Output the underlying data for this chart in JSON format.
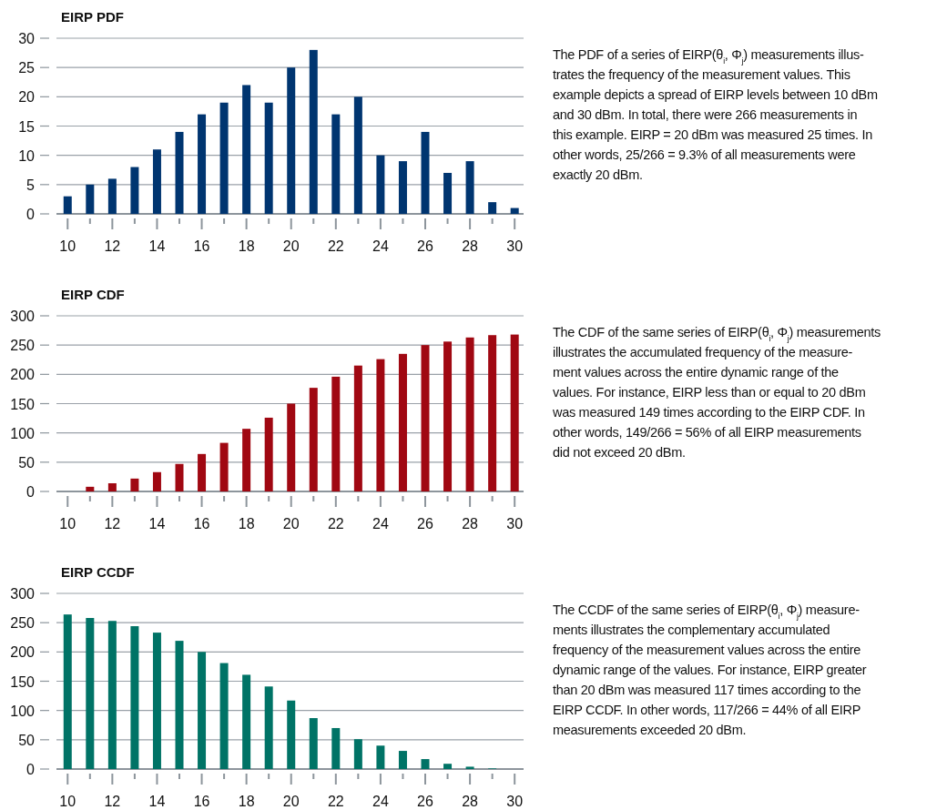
{
  "chart_data": [
    {
      "type": "bar",
      "title": "EIRP PDF",
      "x": [
        10,
        11,
        12,
        13,
        14,
        15,
        16,
        17,
        18,
        19,
        20,
        21,
        22,
        23,
        24,
        25,
        26,
        27,
        28,
        29,
        30
      ],
      "series": [
        {
          "color": "#003570",
          "values": [
            3,
            5,
            6,
            8,
            11,
            14,
            17,
            19,
            22,
            19,
            25,
            28,
            17,
            20,
            10,
            9,
            14,
            7,
            9,
            2,
            1
          ]
        }
      ],
      "xlim": [
        9.5,
        30.4
      ],
      "xticks": [
        10,
        {
          "value": 11,
          "label": null
        },
        12,
        {
          "value": 13,
          "label": null
        },
        14,
        {
          "value": 15,
          "label": null
        },
        16,
        {
          "value": 17,
          "label": null
        },
        18,
        {
          "value": 19,
          "label": null
        },
        20,
        {
          "value": 21,
          "label": null
        },
        22,
        {
          "value": 23,
          "label": null
        },
        24,
        {
          "value": 25,
          "label": null
        },
        26,
        {
          "value": 27,
          "label": null
        },
        28,
        {
          "value": 29,
          "label": null
        },
        30
      ],
      "ylim": [
        0,
        30
      ],
      "yticks": [
        0,
        5,
        10,
        15,
        20,
        25,
        30
      ],
      "grid": "y",
      "annotations": [
        "The PDF of a series of EIRP(θ$_{i}$, Φ$_{j}$) measurements illus-\ntrates the frequency of the measurement values. This\nexample depicts a spread of EIRP levels between 10 dBm\nand 30 dBm. In total, there were 266 measurements in\nthis example. EIRP = 20 dBm was measured 25 times. In\nother words, 25/266 = 9.3% of all measurements were\nexactly 20 dBm."
      ]
    },
    {
      "type": "bar",
      "title": "EIRP CDF",
      "x": [
        10,
        11,
        12,
        13,
        14,
        15,
        16,
        17,
        18,
        19,
        20,
        21,
        22,
        23,
        24,
        25,
        26,
        27,
        28,
        29,
        30
      ],
      "series": [
        {
          "color": "#a00812",
          "values": [
            0,
            8,
            14,
            22,
            33,
            47,
            64,
            83,
            107,
            126,
            150,
            177,
            196,
            215,
            226,
            235,
            250,
            256,
            263,
            267,
            268
          ]
        }
      ],
      "xlim": [
        9.5,
        30.4
      ],
      "xticks": [
        10,
        {
          "value": 11,
          "label": null
        },
        12,
        {
          "value": 13,
          "label": null
        },
        14,
        {
          "value": 15,
          "label": null
        },
        16,
        {
          "value": 17,
          "label": null
        },
        18,
        {
          "value": 19,
          "label": null
        },
        20,
        {
          "value": 21,
          "label": null
        },
        22,
        {
          "value": 23,
          "label": null
        },
        24,
        {
          "value": 25,
          "label": null
        },
        26,
        {
          "value": 27,
          "label": null
        },
        28,
        {
          "value": 29,
          "label": null
        },
        30
      ],
      "ylim": [
        0,
        300
      ],
      "yticks": [
        0,
        50,
        100,
        150,
        200,
        250,
        300
      ],
      "grid": "y",
      "annotations": [
        "The CDF of the same series of EIRP(θ$_{i}$, Φ$_{j}$) measurements\nillustrates the accumulated frequency of the measure-\nment values across the entire dynamic range of the\nvalues. For instance, EIRP less than or equal to 20 dBm\nwas measured 149 times according to the EIRP CDF. In\nother words, 149/266 = 56% of all EIRP measurements\ndid not exceed 20 dBm."
      ]
    },
    {
      "type": "bar",
      "title": "EIRP CCDF",
      "x": [
        10,
        11,
        12,
        13,
        14,
        15,
        16,
        17,
        18,
        19,
        20,
        21,
        22,
        23,
        24,
        25,
        26,
        27,
        28,
        29,
        30
      ],
      "series": [
        {
          "color": "#007366",
          "values": [
            264,
            258,
            253,
            244,
            233,
            219,
            200,
            181,
            161,
            141,
            117,
            87,
            70,
            51,
            40,
            31,
            17,
            9,
            4,
            1,
            0
          ]
        }
      ],
      "xlim": [
        9.5,
        30.4
      ],
      "xticks": [
        10,
        {
          "value": 11,
          "label": null
        },
        12,
        {
          "value": 13,
          "label": null
        },
        14,
        {
          "value": 15,
          "label": null
        },
        16,
        {
          "value": 17,
          "label": null
        },
        18,
        {
          "value": 19,
          "label": null
        },
        20,
        {
          "value": 21,
          "label": null
        },
        22,
        {
          "value": 23,
          "label": null
        },
        24,
        {
          "value": 25,
          "label": null
        },
        26,
        {
          "value": 27,
          "label": null
        },
        28,
        {
          "value": 29,
          "label": null
        },
        30
      ],
      "ylim": [
        0,
        300
      ],
      "yticks": [
        0,
        50,
        100,
        150,
        200,
        250,
        300
      ],
      "grid": "y",
      "annotations": [
        "The CCDF of the same series of EIRP(θ$_{i}$, Φ$_{j}$) measure-\nments illustrates the complementary accumulated\nfrequency of the measurement values across the entire\ndynamic range of the values. For instance, EIRP greater\nthan 20 dBm was measured 117 times according to the\nEIRP CCDF. In other words, 117/266 = 44% of all EIRP\nmeasurements exceeded 20 dBm."
      ]
    }
  ]
}
